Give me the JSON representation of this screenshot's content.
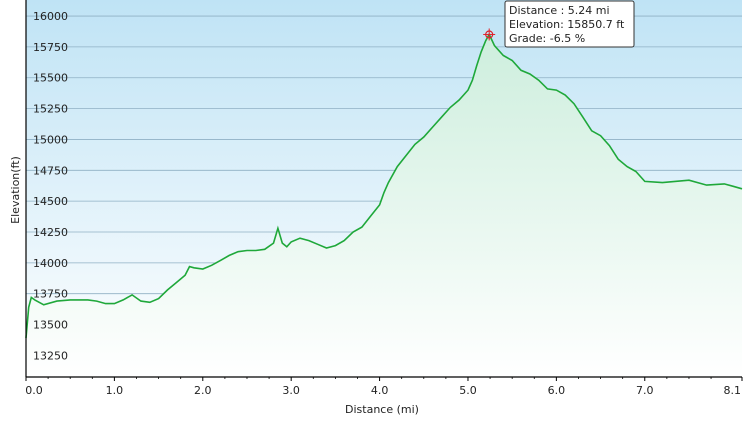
{
  "chart_data": {
    "type": "area",
    "xlabel": "Distance  (mi)",
    "ylabel": "Elevation(ft)",
    "xlim": [
      0,
      8.1
    ],
    "ylim": [
      13075,
      16130
    ],
    "x_ticks": [
      "0.0",
      "1.0",
      "2.0",
      "3.0",
      "4.0",
      "5.0",
      "6.0",
      "7.0",
      "8.1"
    ],
    "x_tick_values": [
      0,
      1,
      2,
      3,
      4,
      5,
      6,
      7,
      8.1
    ],
    "y_ticks": [
      "13250",
      "13500",
      "13750",
      "14000",
      "14250",
      "14500",
      "14750",
      "15000",
      "15250",
      "15500",
      "15750",
      "16000"
    ],
    "y_tick_values": [
      13250,
      13500,
      13750,
      14000,
      14250,
      14500,
      14750,
      15000,
      15250,
      15500,
      15750,
      16000
    ],
    "grid": true,
    "series": [
      {
        "x": [
          0.0,
          0.03,
          0.06,
          0.1,
          0.2,
          0.35,
          0.5,
          0.7,
          0.8,
          0.9,
          1.0,
          1.1,
          1.2,
          1.3,
          1.4,
          1.5,
          1.6,
          1.7,
          1.8,
          1.85,
          1.9,
          2.0,
          2.1,
          2.2,
          2.3,
          2.4,
          2.5,
          2.6,
          2.7,
          2.8,
          2.85,
          2.9,
          2.95,
          3.0,
          3.1,
          3.2,
          3.3,
          3.4,
          3.5,
          3.6,
          3.7,
          3.8,
          3.9,
          4.0,
          4.05,
          4.1,
          4.2,
          4.3,
          4.4,
          4.5,
          4.6,
          4.7,
          4.8,
          4.9,
          5.0,
          5.05,
          5.1,
          5.15,
          5.2,
          5.24,
          5.3,
          5.4,
          5.5,
          5.6,
          5.7,
          5.8,
          5.9,
          6.0,
          6.1,
          6.2,
          6.3,
          6.4,
          6.5,
          6.6,
          6.7,
          6.8,
          6.9,
          7.0,
          7.2,
          7.5,
          7.7,
          7.9,
          8.0,
          8.1
        ],
        "y": [
          13390,
          13640,
          13720,
          13700,
          13660,
          13690,
          13700,
          13700,
          13690,
          13670,
          13670,
          13700,
          13740,
          13690,
          13680,
          13710,
          13780,
          13840,
          13900,
          13970,
          13960,
          13950,
          13980,
          14020,
          14060,
          14090,
          14100,
          14100,
          14110,
          14160,
          14280,
          14160,
          14130,
          14170,
          14200,
          14180,
          14150,
          14120,
          14140,
          14180,
          14250,
          14290,
          14380,
          14470,
          14570,
          14650,
          14780,
          14870,
          14960,
          15020,
          15100,
          15180,
          15260,
          15320,
          15400,
          15480,
          15600,
          15710,
          15800,
          15851,
          15760,
          15680,
          15640,
          15560,
          15530,
          15480,
          15410,
          15400,
          15360,
          15290,
          15180,
          15070,
          15030,
          14950,
          14840,
          14780,
          14740,
          14660,
          14650,
          14670,
          14630,
          14640,
          14620,
          14600
        ]
      }
    ],
    "marker": {
      "x": 5.24,
      "y": 15850.7
    },
    "colors": {
      "line": "#1fa83a",
      "fill_top": "#cdeedd",
      "fill_bottom": "#ffffff",
      "bg_top": "#bfe3f5",
      "bg_bottom": "#ffffff",
      "grid": "#8fb0c4",
      "marker": "#e0202a"
    }
  },
  "tooltip": {
    "line1": "Distance  : 5.24 mi",
    "line2": "Elevation: 15850.7 ft",
    "line3": "Grade: -6.5 %"
  }
}
